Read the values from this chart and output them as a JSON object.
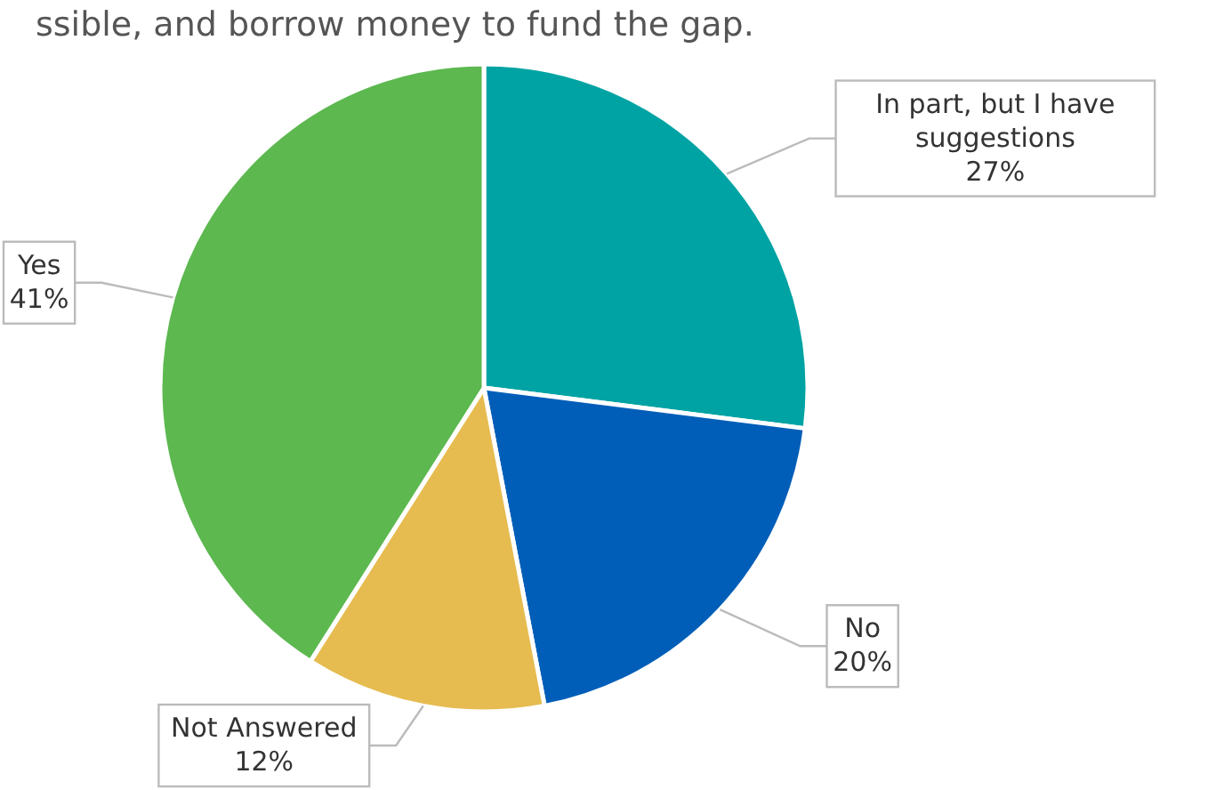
{
  "chart_data": {
    "type": "pie",
    "title": "ssible, and borrow money to fund the gap.",
    "categories": [
      "In part, but I have suggestions",
      "No",
      "Not Answered",
      "Yes"
    ],
    "values": [
      27,
      20,
      12,
      41
    ],
    "colors": [
      "#00a3a3",
      "#005eb8",
      "#e6bc50",
      "#5cb84f"
    ],
    "value_labels": [
      "27%",
      "20%",
      "12%",
      "41%"
    ]
  }
}
